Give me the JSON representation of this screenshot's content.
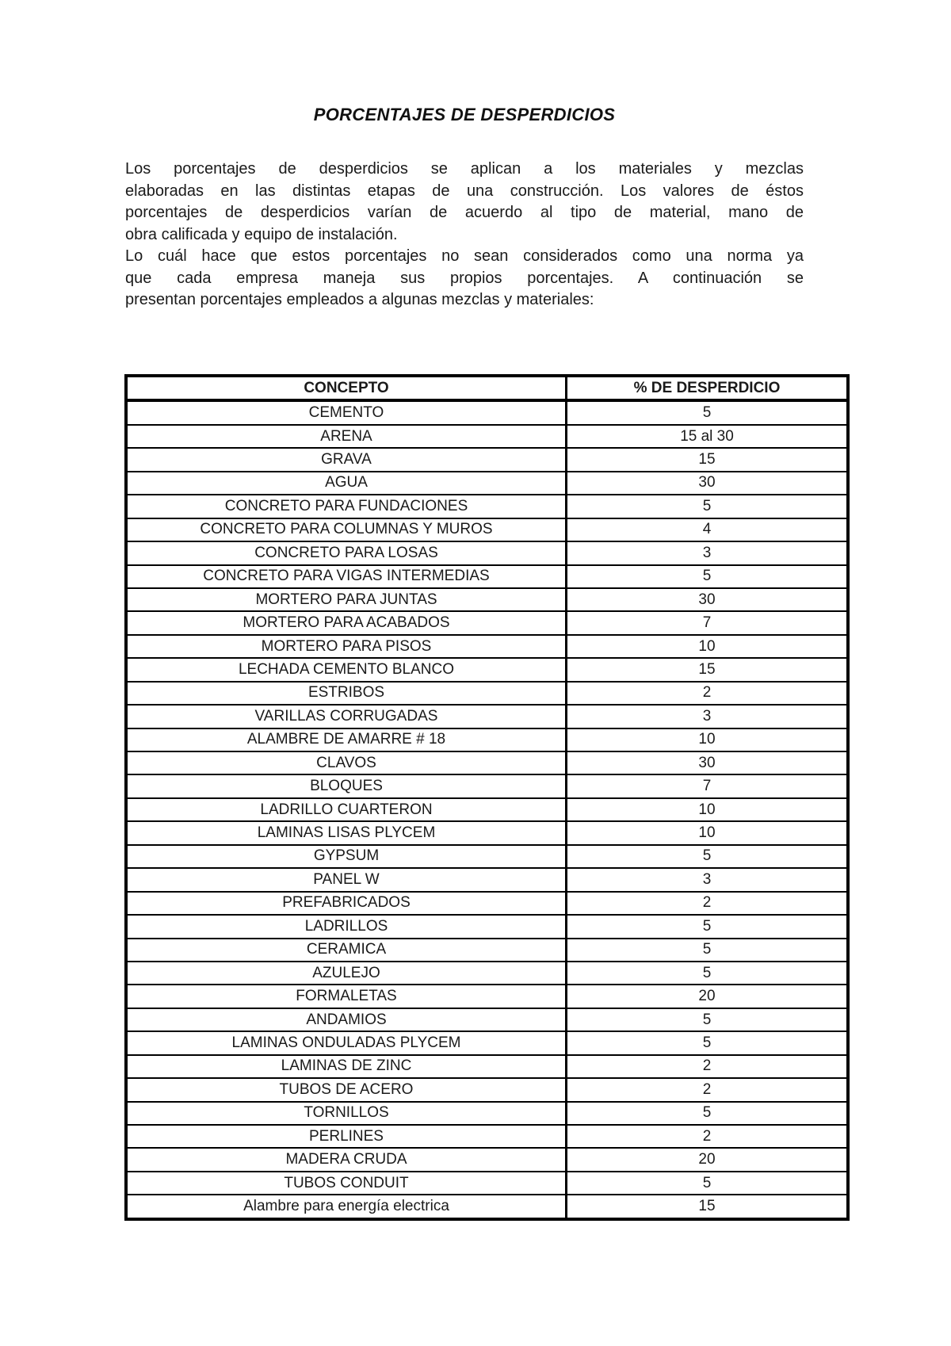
{
  "document": {
    "title": "PORCENTAJES DE DESPERDICIOS",
    "paragraphs": [
      {
        "lines": [
          "Los porcentajes de desperdicios se aplican a los materiales y mezclas",
          "elaboradas en las distintas etapas de una construcción. Los valores de éstos",
          "porcentajes de desperdicios varían de acuerdo al tipo de material, mano de",
          "obra calificada y equipo de instalación."
        ]
      },
      {
        "lines": [
          "Lo cuál hace que estos porcentajes no sean considerados como una norma ya",
          "que cada empresa maneja sus propios porcentajes. A continuación se",
          "presentan porcentajes empleados a algunas mezclas y materiales:"
        ]
      }
    ],
    "table": {
      "headers": [
        "CONCEPTO",
        "% DE DESPERDICIO"
      ],
      "rows": [
        [
          "CEMENTO",
          "5"
        ],
        [
          "ARENA",
          "15 al 30"
        ],
        [
          "GRAVA",
          "15"
        ],
        [
          "AGUA",
          "30"
        ],
        [
          "CONCRETO PARA FUNDACIONES",
          "5"
        ],
        [
          "CONCRETO PARA COLUMNAS Y MUROS",
          "4"
        ],
        [
          "CONCRETO PARA LOSAS",
          "3"
        ],
        [
          "CONCRETO PARA VIGAS INTERMEDIAS",
          "5"
        ],
        [
          "MORTERO PARA JUNTAS",
          "30"
        ],
        [
          "MORTERO PARA ACABADOS",
          "7"
        ],
        [
          "MORTERO PARA PISOS",
          "10"
        ],
        [
          "LECHADA CEMENTO BLANCO",
          "15"
        ],
        [
          "ESTRIBOS",
          "2"
        ],
        [
          "VARILLAS CORRUGADAS",
          "3"
        ],
        [
          "ALAMBRE DE AMARRE # 18",
          "10"
        ],
        [
          "CLAVOS",
          "30"
        ],
        [
          "BLOQUES",
          "7"
        ],
        [
          "LADRILLO CUARTERON",
          "10"
        ],
        [
          "LAMINAS LISAS PLYCEM",
          "10"
        ],
        [
          "GYPSUM",
          "5"
        ],
        [
          "PANEL W",
          "3"
        ],
        [
          "PREFABRICADOS",
          "2"
        ],
        [
          "LADRILLOS",
          "5"
        ],
        [
          "CERAMICA",
          "5"
        ],
        [
          "AZULEJO",
          "5"
        ],
        [
          "FORMALETAS",
          "20"
        ],
        [
          "ANDAMIOS",
          "5"
        ],
        [
          "LAMINAS ONDULADAS PLYCEM",
          "5"
        ],
        [
          "LAMINAS DE ZINC",
          "2"
        ],
        [
          "TUBOS DE ACERO",
          "2"
        ],
        [
          "TORNILLOS",
          "5"
        ],
        [
          "PERLINES",
          "2"
        ],
        [
          "MADERA CRUDA",
          "20"
        ],
        [
          "TUBOS CONDUIT",
          "5"
        ],
        [
          "Alambre para energía electrica",
          "15"
        ]
      ]
    }
  },
  "colors": {
    "background": "#ffffff",
    "text": "#1a1a1a",
    "border": "#000000"
  }
}
